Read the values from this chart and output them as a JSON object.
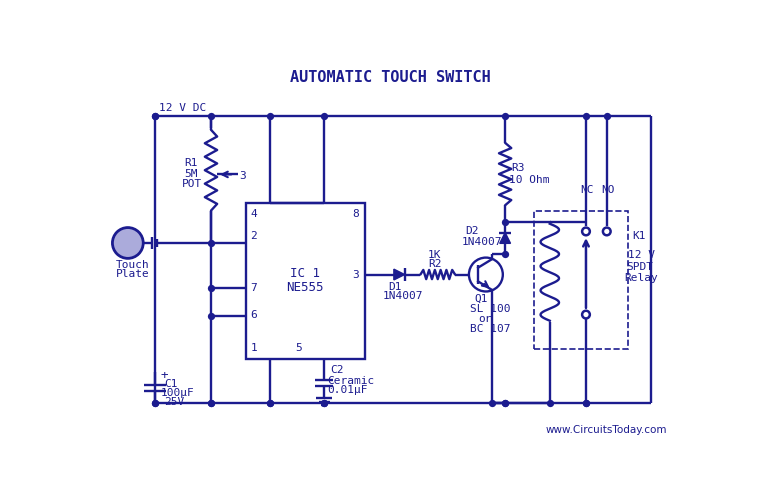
{
  "title": "AUTOMATIC TOUCH SWITCH",
  "color": "#1c1c8f",
  "bg_color": "#FFFFFF",
  "website": "www.CircuitsToday.com",
  "figsize": [
    7.61,
    5.04
  ],
  "dpi": 100,
  "xlim": [
    0,
    761
  ],
  "ylim": [
    0,
    504
  ]
}
